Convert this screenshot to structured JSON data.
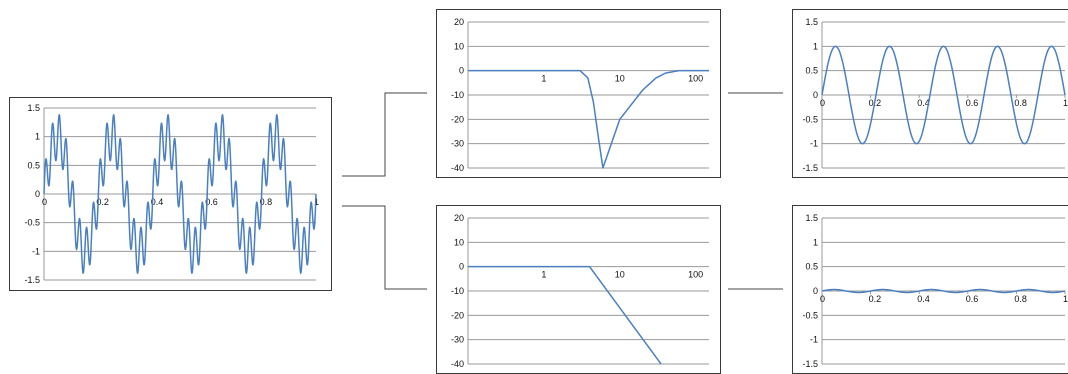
{
  "colors": {
    "line": "#4a7fc1",
    "grid": "#9a9a9a",
    "frame": "#3a3a3a",
    "connector": "#444444"
  },
  "chart_data": [
    {
      "id": "input-signal",
      "type": "line",
      "title": "",
      "xlabel": "",
      "ylabel": "",
      "xlim": [
        0,
        1
      ],
      "ylim": [
        -1.5,
        1.5
      ],
      "x_ticks": [
        0,
        0.2,
        0.4,
        0.6,
        0.8,
        1
      ],
      "x_tick_labels": [
        "0",
        "0.2",
        "0.4",
        "0.6",
        "0.8",
        "1"
      ],
      "y_ticks": [
        1.5,
        1,
        0.5,
        0,
        -0.5,
        -1,
        -1.5
      ],
      "y_tick_labels": [
        "1.5",
        "1",
        "0.5",
        "0",
        "-0.5",
        "-1",
        "-1.5"
      ],
      "grid": true,
      "series": [
        {
          "signal": {
            "kind": "sum_of_sines",
            "components": [
              {
                "amplitude": 1.0,
                "frequency": 5
              },
              {
                "amplitude": 0.4,
                "frequency": 40
              }
            ]
          }
        }
      ]
    },
    {
      "id": "notch-filter-response",
      "type": "line",
      "title": "",
      "xlabel": "",
      "ylabel": "",
      "x_scale": "log",
      "xlim": [
        0.1,
        150
      ],
      "ylim": [
        -40,
        20
      ],
      "x_ticks": [
        1,
        10,
        100
      ],
      "x_tick_labels": [
        "1",
        "10",
        "100"
      ],
      "y_ticks": [
        20,
        10,
        0,
        -10,
        -20,
        -30,
        -40
      ],
      "y_tick_labels": [
        "20",
        "10",
        "0",
        "-10",
        "-20",
        "-30",
        "-40"
      ],
      "grid": true,
      "series": [
        {
          "x": [
            0.1,
            3,
            3.8,
            4.5,
            5.2,
            6,
            10,
            20,
            30,
            40,
            60,
            150
          ],
          "y": [
            0,
            0,
            -3,
            -13,
            -27,
            -40,
            -20,
            -8,
            -3,
            -1,
            0,
            0
          ]
        }
      ]
    },
    {
      "id": "notch-filter-output",
      "type": "line",
      "title": "",
      "xlabel": "",
      "ylabel": "",
      "xlim": [
        0,
        1
      ],
      "ylim": [
        -1.5,
        1.5
      ],
      "x_ticks": [
        0,
        0.2,
        0.4,
        0.6,
        0.8,
        1
      ],
      "x_tick_labels": [
        "0",
        "0.2",
        "0.4",
        "0.6",
        "0.8",
        "1"
      ],
      "y_ticks": [
        1.5,
        1,
        0.5,
        0,
        -0.5,
        -1,
        -1.5
      ],
      "y_tick_labels": [
        "1.5",
        "1",
        "0.5",
        "0",
        "-0.5",
        "-1",
        "-1.5"
      ],
      "grid": true,
      "series": [
        {
          "signal": {
            "kind": "sum_of_sines",
            "components": [
              {
                "amplitude": 1.0,
                "frequency": 4.5
              }
            ]
          }
        }
      ]
    },
    {
      "id": "lowpass-filter-response",
      "type": "line",
      "title": "",
      "xlabel": "",
      "ylabel": "",
      "x_scale": "log",
      "xlim": [
        0.1,
        150
      ],
      "ylim": [
        -40,
        20
      ],
      "x_ticks": [
        1,
        10,
        100
      ],
      "x_tick_labels": [
        "1",
        "10",
        "100"
      ],
      "y_ticks": [
        20,
        10,
        0,
        -10,
        -20,
        -30,
        -40
      ],
      "y_tick_labels": [
        "20",
        "10",
        "0",
        "-10",
        "-20",
        "-30",
        "-40"
      ],
      "grid": true,
      "series": [
        {
          "x": [
            0.1,
            4,
            35
          ],
          "y": [
            0,
            0,
            -40
          ]
        }
      ]
    },
    {
      "id": "lowpass-filter-output",
      "type": "line",
      "title": "",
      "xlabel": "",
      "ylabel": "",
      "xlim": [
        0,
        1
      ],
      "ylim": [
        -1.5,
        1.5
      ],
      "x_ticks": [
        0,
        0.2,
        0.4,
        0.6,
        0.8,
        1
      ],
      "x_tick_labels": [
        "0",
        "0.2",
        "0.4",
        "0.6",
        "0.8",
        "1"
      ],
      "y_ticks": [
        1.5,
        1,
        0.5,
        0,
        -0.5,
        -1,
        -1.5
      ],
      "y_tick_labels": [
        "1.5",
        "1",
        "0.5",
        "0",
        "-0.5",
        "-1",
        "-1.5"
      ],
      "grid": true,
      "series": [
        {
          "signal": {
            "kind": "sum_of_sines",
            "components": [
              {
                "amplitude": 0.03,
                "frequency": 5
              }
            ]
          }
        }
      ]
    }
  ]
}
